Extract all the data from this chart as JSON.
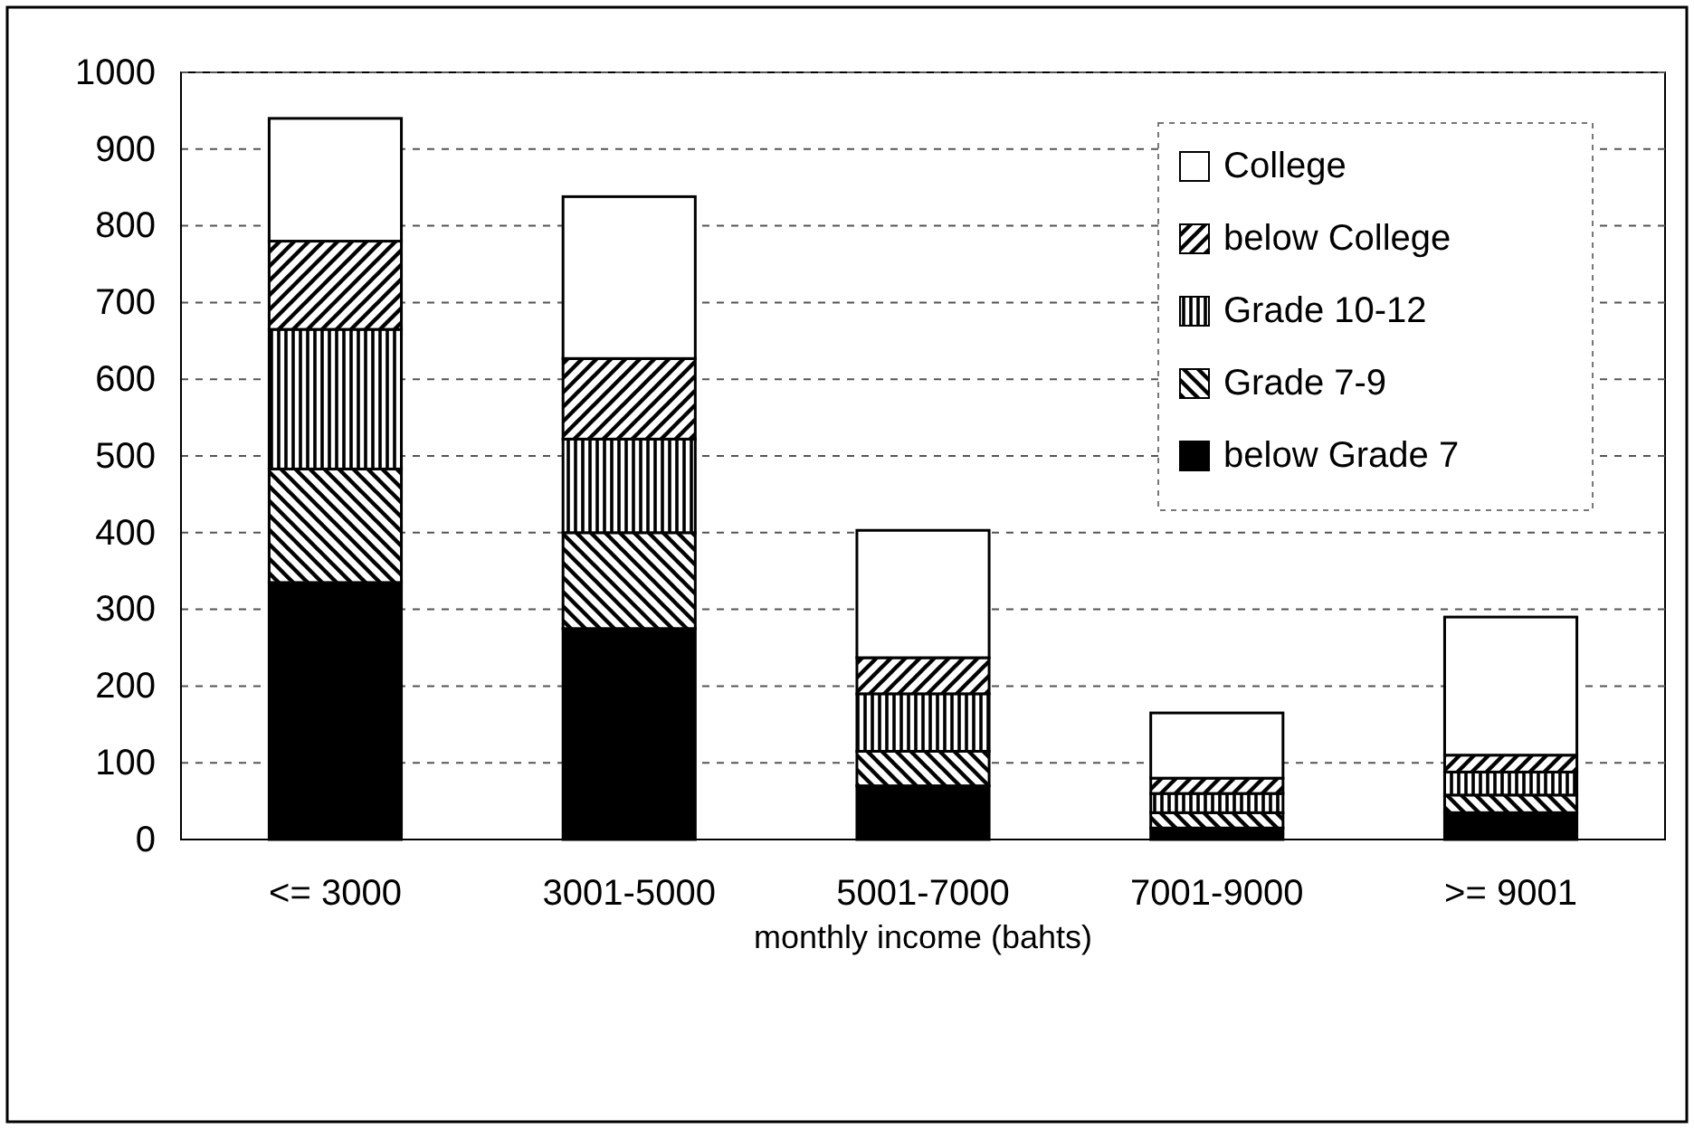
{
  "chart_data": {
    "type": "bar",
    "stacked": true,
    "xlabel": "monthly income (bahts)",
    "categories": [
      "<= 3000",
      "3001-5000",
      "5001-7000",
      "7001-9000",
      ">= 9001"
    ],
    "series": [
      {
        "name": "below Grade 7",
        "color": "#000000",
        "values": [
          335,
          275,
          70,
          15,
          35
        ]
      },
      {
        "name": "Grade 7-9",
        "color": "#000000",
        "values": [
          148,
          125,
          45,
          20,
          23
        ]
      },
      {
        "name": "Grade 10-12",
        "color": "#000000",
        "values": [
          182,
          122,
          75,
          25,
          30
        ]
      },
      {
        "name": "below College",
        "color": "#000000",
        "values": [
          115,
          105,
          47,
          20,
          22
        ]
      },
      {
        "name": "College",
        "color": "#ffffff",
        "values": [
          160,
          211,
          166,
          85,
          180
        ]
      }
    ],
    "ylim": [
      0,
      1000
    ],
    "yticks": [
      0,
      100,
      200,
      300,
      400,
      500,
      600,
      700,
      800,
      900,
      1000
    ],
    "grid": "y",
    "legend": "top right"
  }
}
